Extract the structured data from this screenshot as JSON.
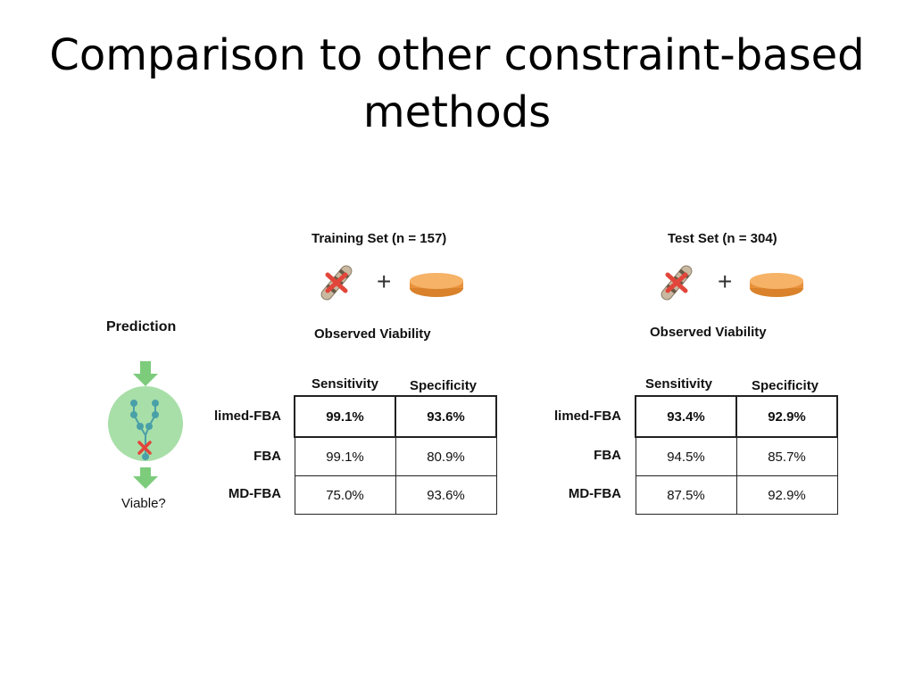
{
  "slide": {
    "title": "Comparison to other constraint-based methods"
  },
  "prediction": {
    "label": "Prediction",
    "question": "Viable?"
  },
  "colors": {
    "arrow": "#7ccc7c",
    "circle": "#a8dfa8",
    "network": "#4aa0a8",
    "knockout": "#e2463a",
    "dish": "#f0a04a"
  },
  "training": {
    "title": "Training Set (n = 157)",
    "plus": "+",
    "observed": "Observed Viability",
    "headers": [
      "Sensitivity",
      "Specificity"
    ],
    "rows": [
      {
        "method": "limed-FBA",
        "sensitivity": "99.1%",
        "specificity": "93.6%"
      },
      {
        "method": "FBA",
        "sensitivity": "99.1%",
        "specificity": "80.9%"
      },
      {
        "method": "MD-FBA",
        "sensitivity": "75.0%",
        "specificity": "93.6%"
      }
    ]
  },
  "test": {
    "title": "Test Set (n = 304)",
    "plus": "+",
    "observed": "Observed Viability",
    "headers": [
      "Sensitivity",
      "Specificity"
    ],
    "rows": [
      {
        "method": "limed-FBA",
        "sensitivity": "93.4%",
        "specificity": "92.9%"
      },
      {
        "method": "FBA",
        "sensitivity": "94.5%",
        "specificity": "85.7%"
      },
      {
        "method": "MD-FBA",
        "sensitivity": "87.5%",
        "specificity": "92.9%"
      }
    ]
  }
}
